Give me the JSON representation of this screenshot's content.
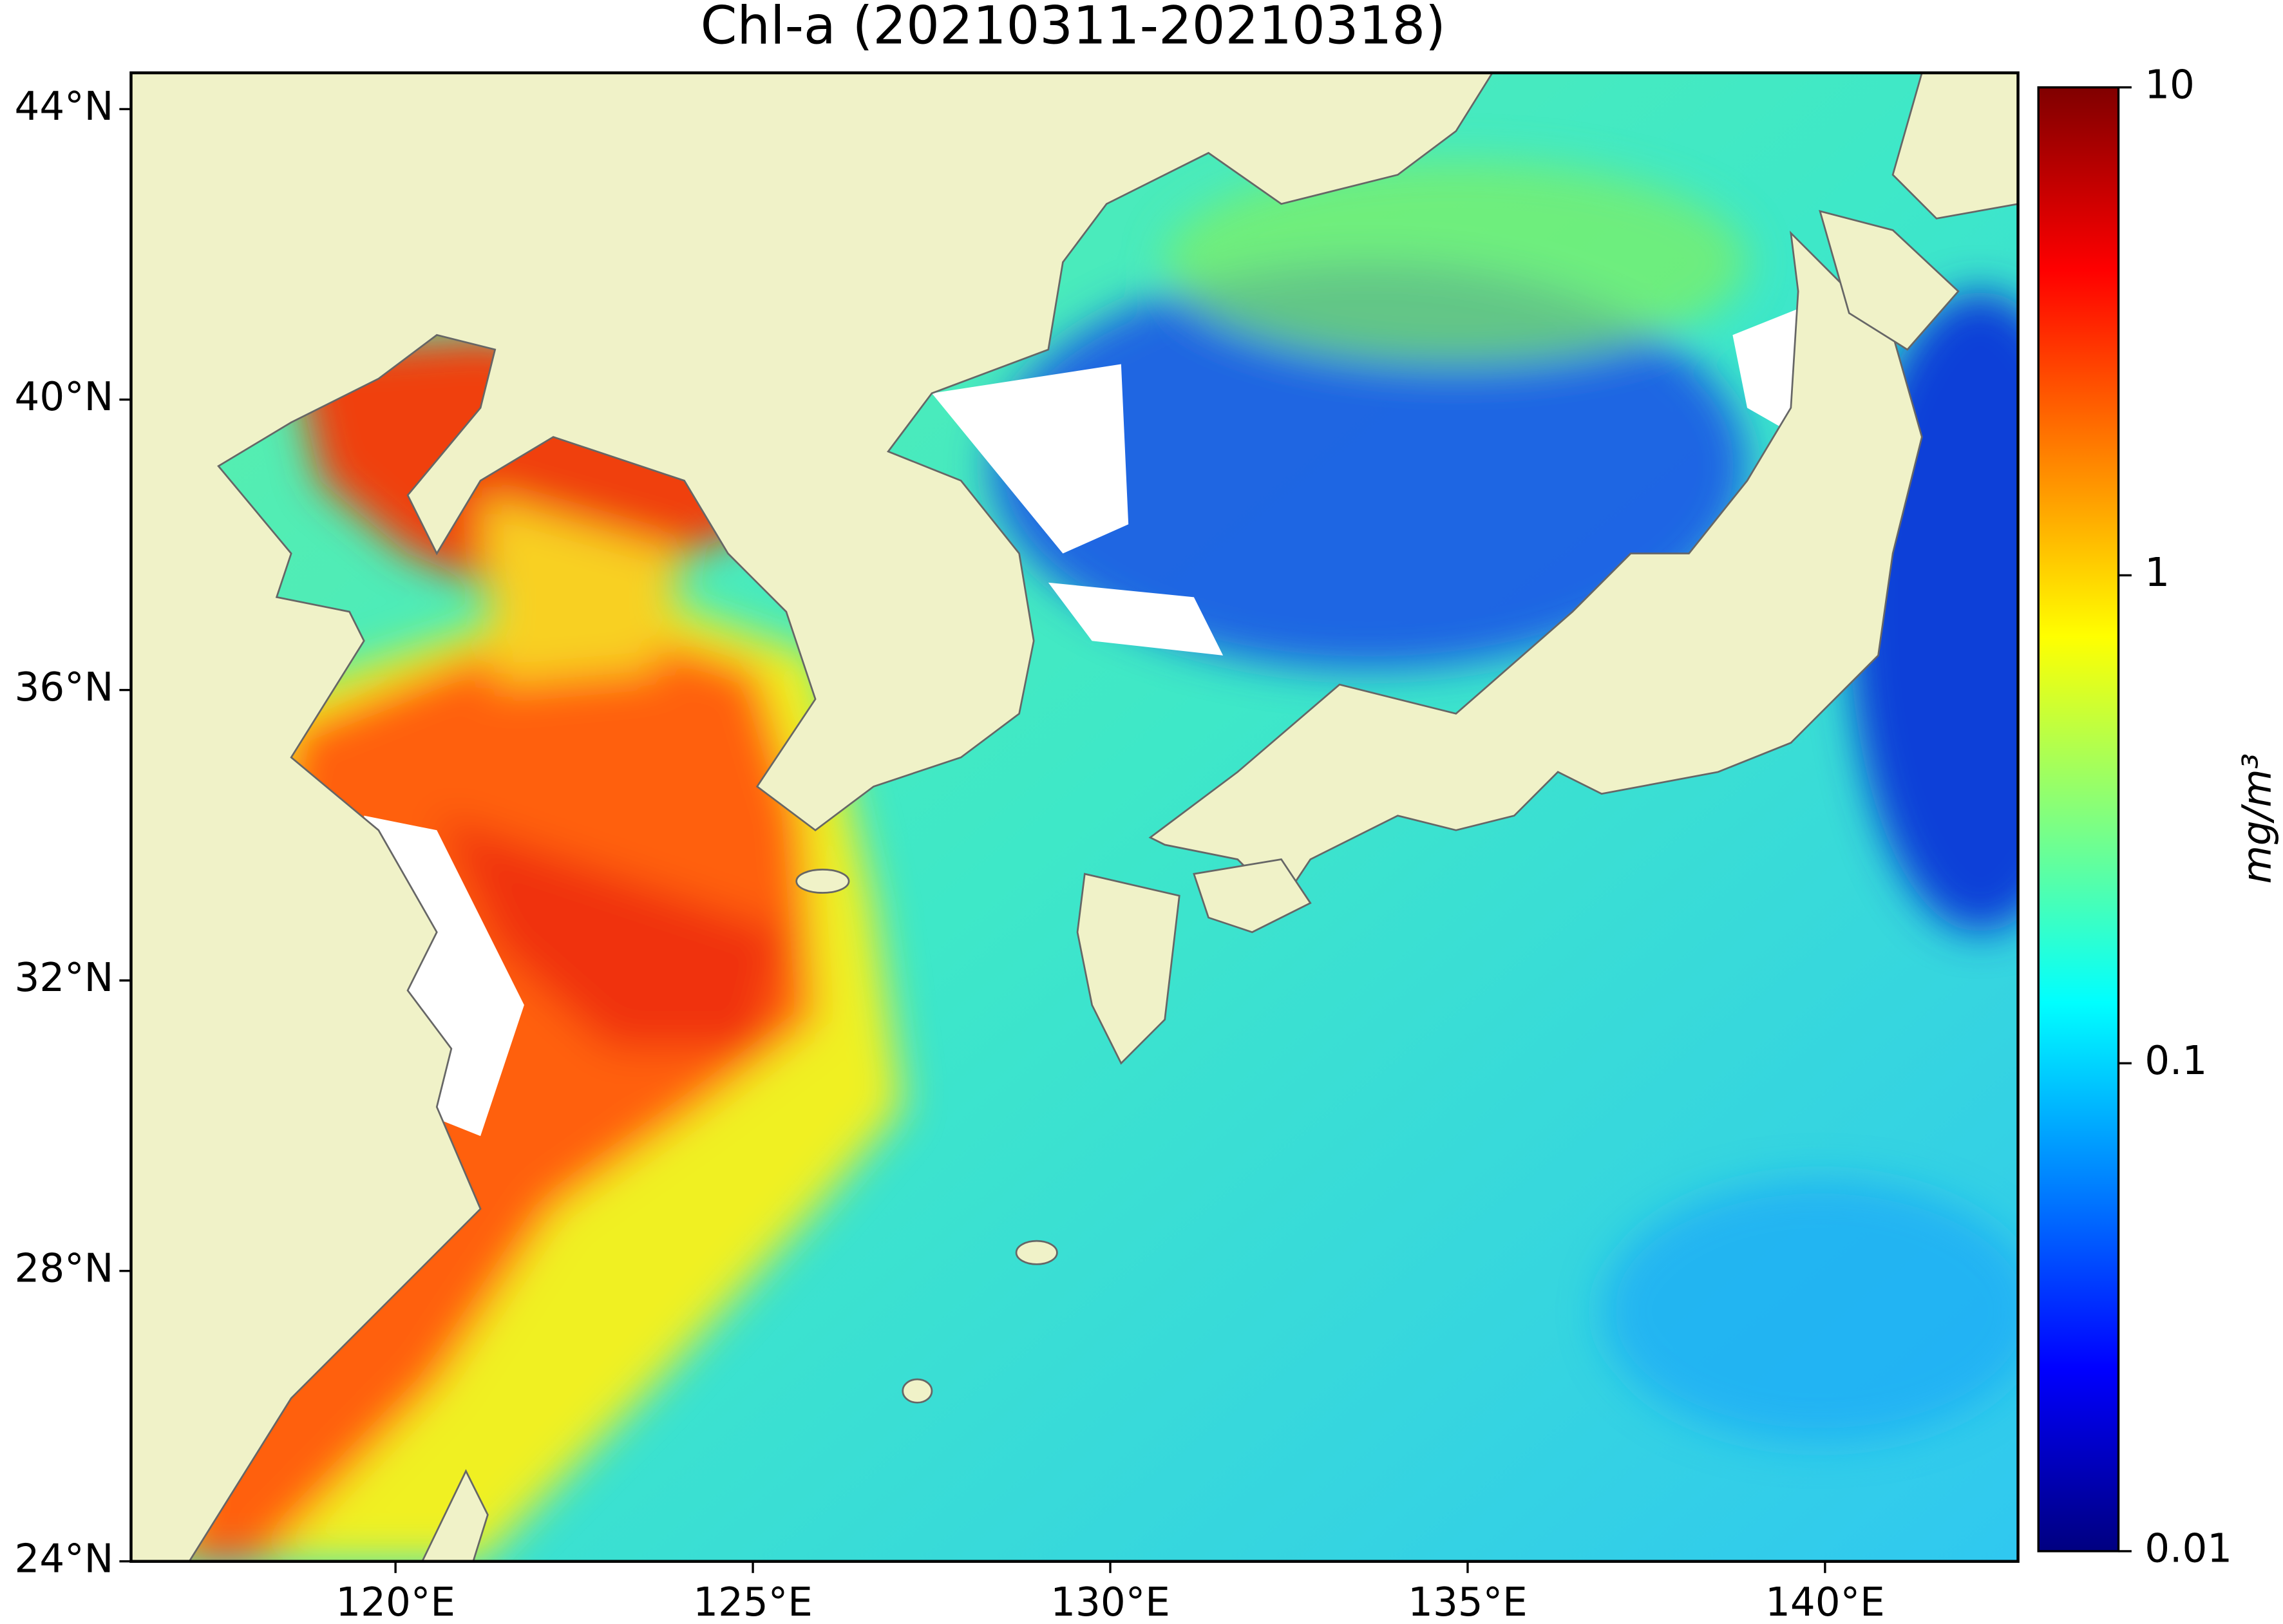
{
  "chart_data": {
    "type": "map",
    "title": "Chl-a (20210311-20210318)",
    "xlim": [
      116.3,
      142.7
    ],
    "ylim": [
      24,
      44.5
    ],
    "xticks": [
      {
        "value": 120,
        "label": "120°E"
      },
      {
        "value": 125,
        "label": "125°E"
      },
      {
        "value": 130,
        "label": "130°E"
      },
      {
        "value": 135,
        "label": "135°E"
      },
      {
        "value": 140,
        "label": "140°E"
      }
    ],
    "yticks": [
      {
        "value": 24,
        "label": "24°N"
      },
      {
        "value": 28,
        "label": "28°N"
      },
      {
        "value": 32,
        "label": "32°N"
      },
      {
        "value": 36,
        "label": "36°N"
      },
      {
        "value": 40,
        "label": "40°N"
      },
      {
        "value": 44,
        "label": "44°N"
      }
    ],
    "colorbar": {
      "label": "mg/m³",
      "colormap": "jet",
      "scale": "log",
      "lim": [
        0.01,
        10
      ],
      "ticks": [
        0.01,
        0.1,
        1,
        10
      ]
    }
  }
}
